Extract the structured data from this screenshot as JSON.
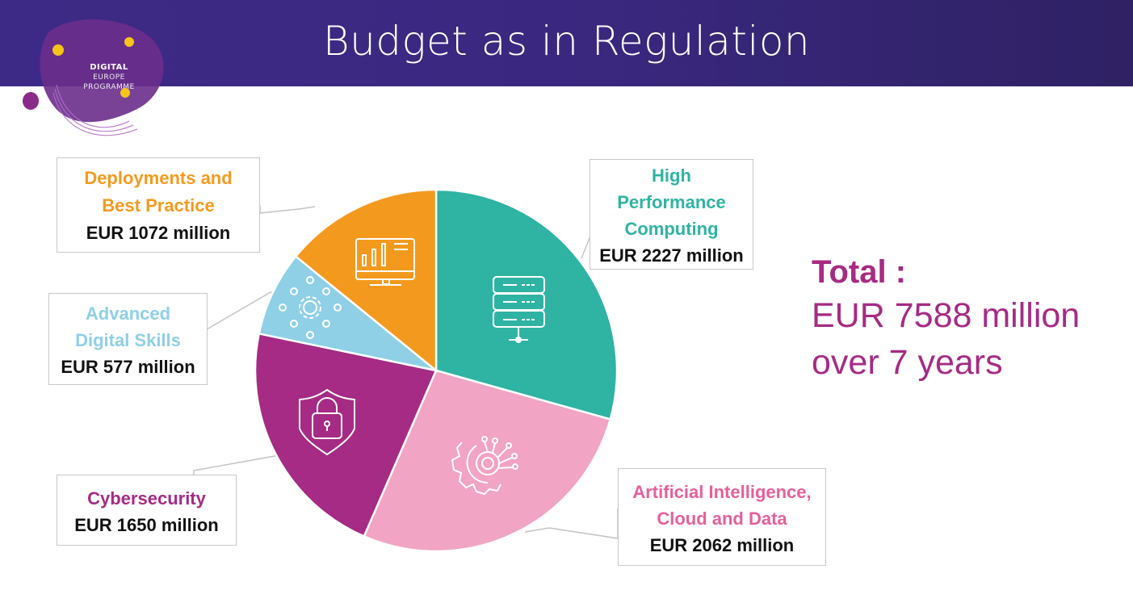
{
  "header": {
    "title": "Budget as in Regulation"
  },
  "logo": {
    "line1": "DIGITAL",
    "line2": "EUROPE",
    "line3": "PROGRAMME"
  },
  "total": {
    "label": "Total :",
    "amount": "EUR 7588 million",
    "period": "over 7 years",
    "color": "#a62b84"
  },
  "chart_data": {
    "type": "pie",
    "title": "Budget as in Regulation",
    "unit": "EUR million",
    "start": "top, clockwise",
    "slices": [
      {
        "name": "High Performance Computing",
        "value": 2227,
        "label": "EUR 2227 million",
        "color": "#2fb3a3",
        "text_color": "#2fb3a3",
        "icon": "server-icon"
      },
      {
        "name": "Artificial Intelligence, Cloud and Data",
        "value": 2062,
        "label": "EUR 2062 million",
        "color": "#f2a4c4",
        "text_color": "#e5609b",
        "icon": "ai-gear-icon"
      },
      {
        "name": "Cybersecurity",
        "value": 1650,
        "label": "EUR 1650 million",
        "color": "#a62b84",
        "text_color": "#a62b84",
        "icon": "shield-lock-icon"
      },
      {
        "name": "Advanced Digital Skills",
        "value": 577,
        "label": "EUR 577 million",
        "color": "#8fd0e6",
        "text_color": "#8fd0e6",
        "icon": "network-gear-icon"
      },
      {
        "name": "Deployments and Best Practice",
        "value": 1072,
        "label": "EUR 1072 million",
        "color": "#f39a1e",
        "text_color": "#f39a1e",
        "icon": "monitor-chart-icon"
      }
    ],
    "total": 7588
  }
}
